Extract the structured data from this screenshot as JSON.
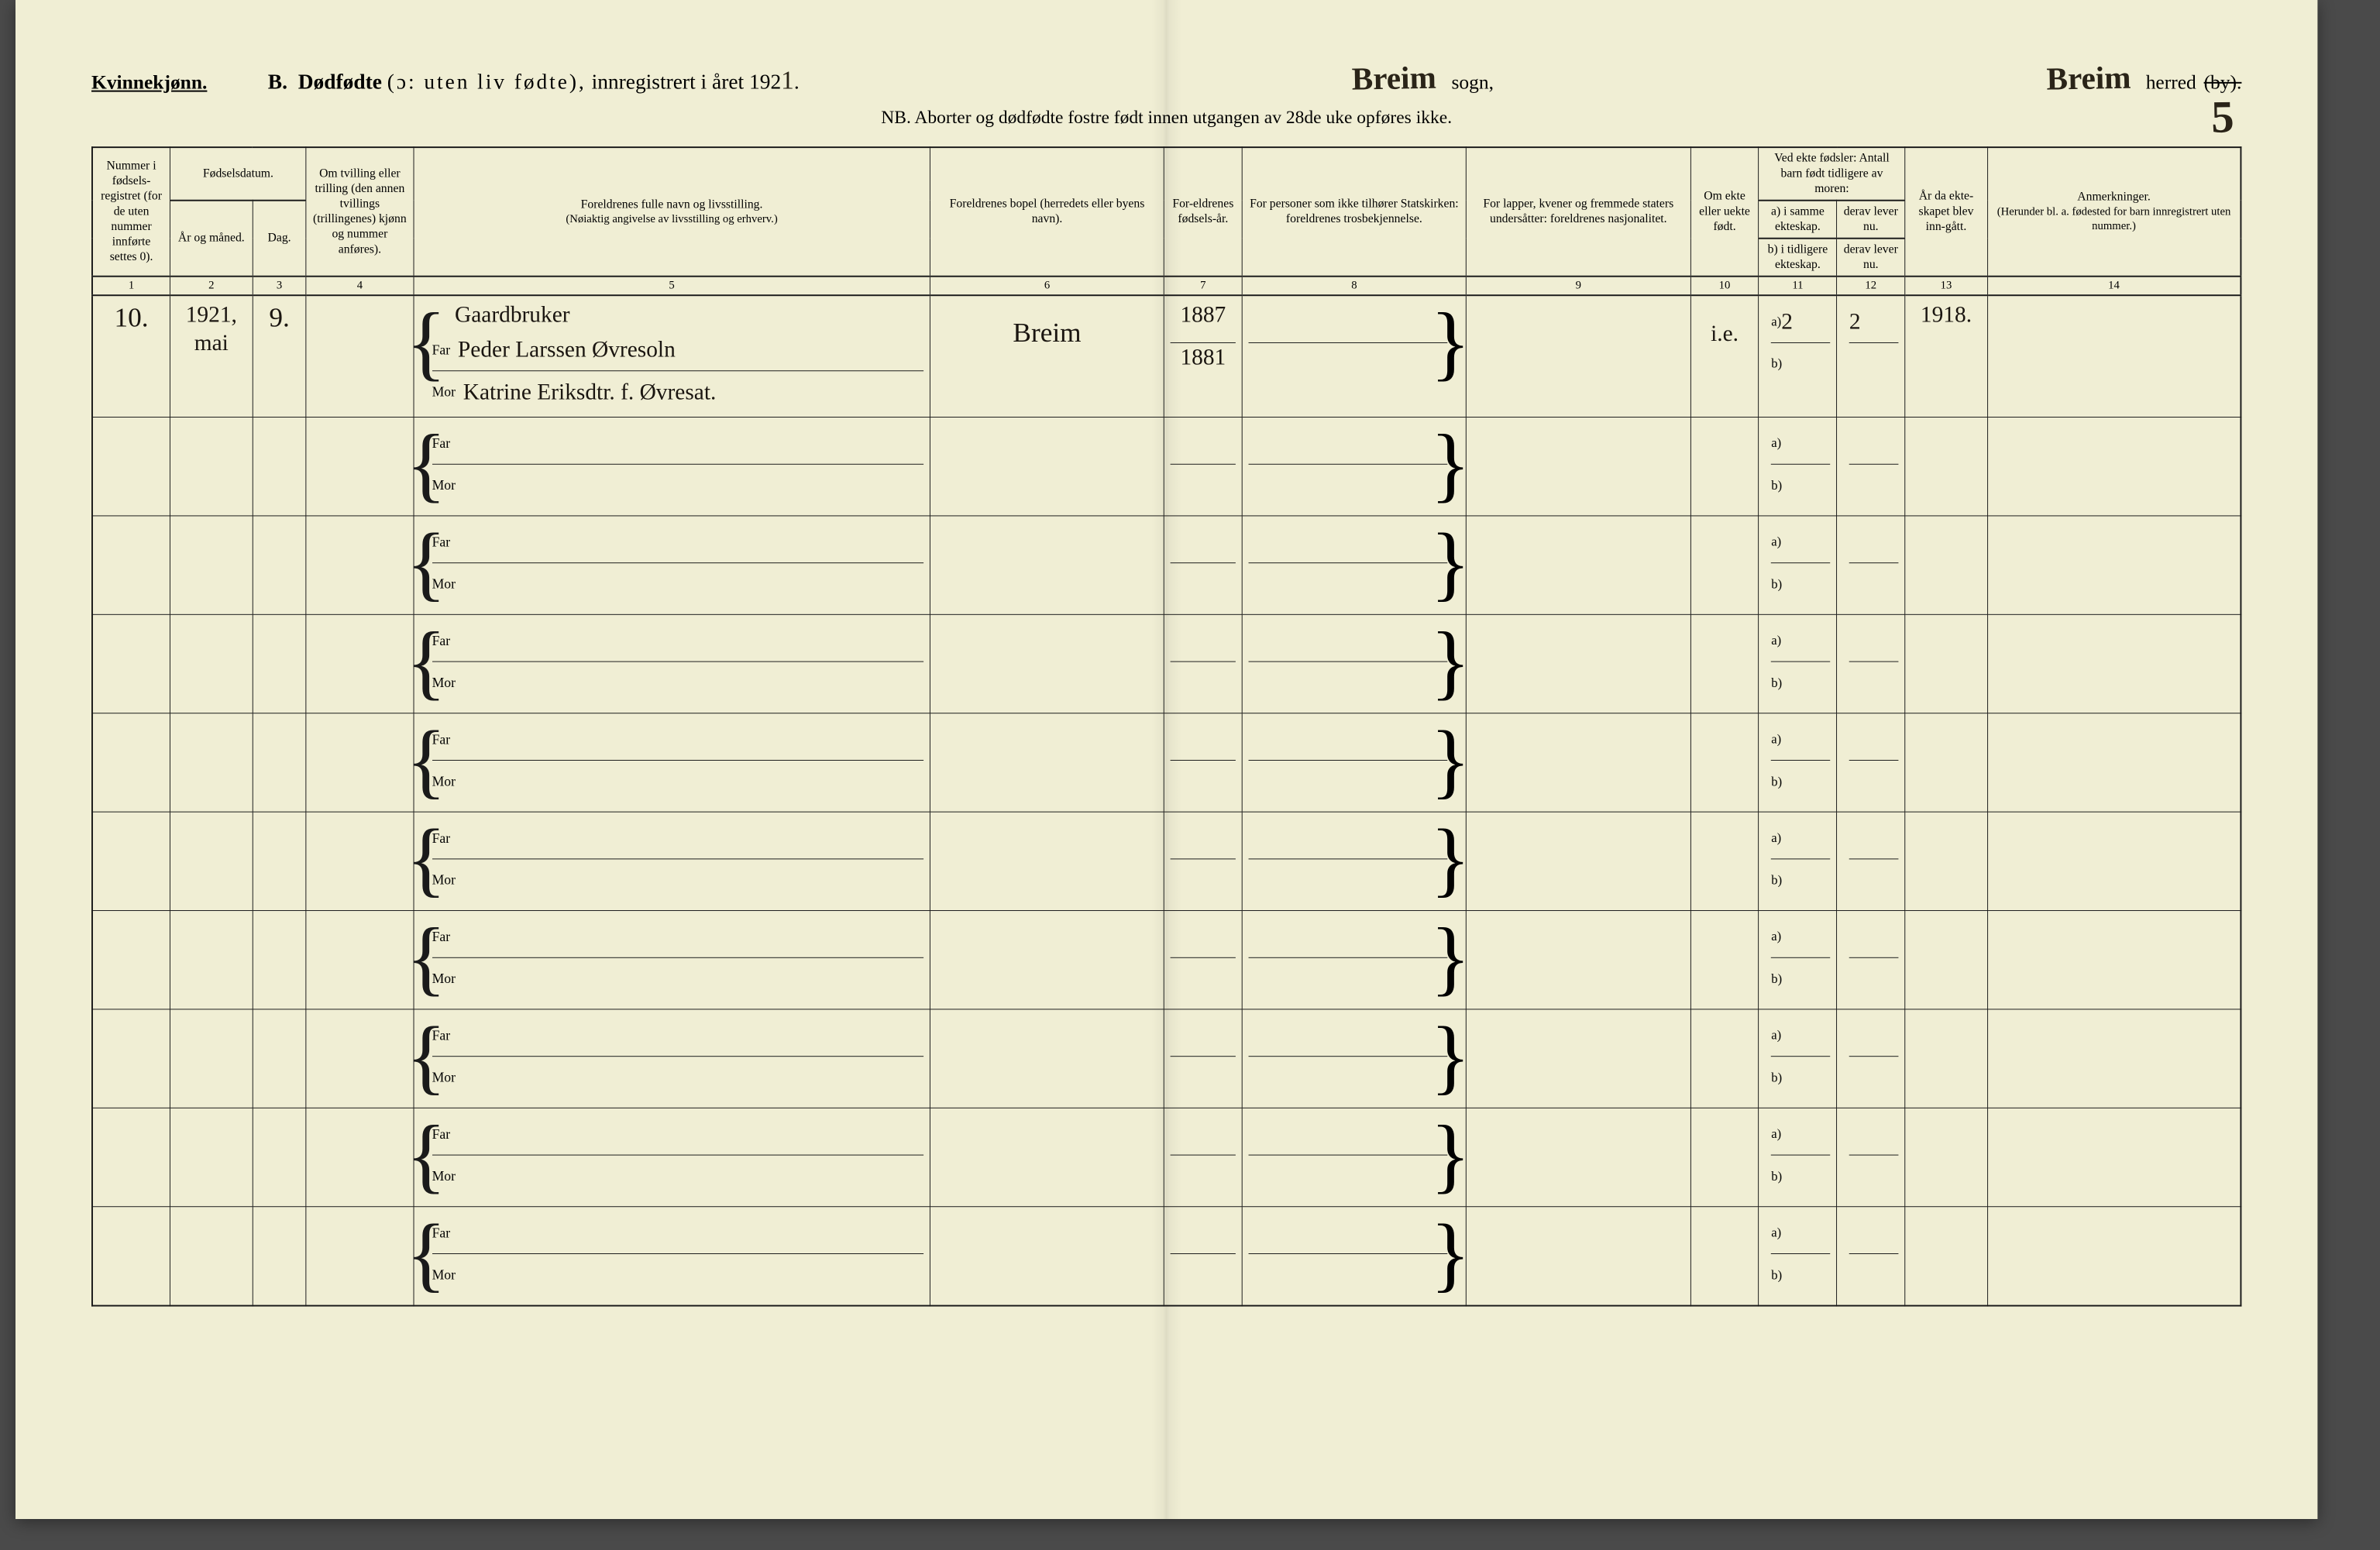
{
  "header": {
    "gender": "Kvinnekjønn.",
    "section_letter": "B.",
    "title_bold": "Dødfødte",
    "title_paren": "(ɔ: uten liv fødte),",
    "title_reg": "innregistrert i året 192",
    "year_hand": "1",
    "sogn_hand": "Breim",
    "sogn_label": "sogn,",
    "herred_hand": "Breim",
    "herred_label": "herred",
    "by_strike": "(by).",
    "nb": "NB. Aborter og dødfødte fostre født innen utgangen av 28de uke opføres ikke.",
    "page_number": "5"
  },
  "columns": {
    "c1": "Nummer i fødsels-registret (for de uten nummer innførte settes 0).",
    "c2": "Fødselsdatum.",
    "c2a": "År og måned.",
    "c2b": "Dag.",
    "c3": "Om tvilling eller trilling (den annen tvillings (trillingenes) kjønn og nummer anføres).",
    "c4_title": "Foreldrenes fulle navn og livsstilling.",
    "c4_sub": "(Nøiaktig angivelse av livsstilling og erhverv.)",
    "c5": "Foreldrenes bopel (herredets eller byens navn).",
    "c6": "For-eldrenes fødsels-år.",
    "c7": "For personer som ikke tilhører Statskirken: foreldrenes trosbekjennelse.",
    "c8": "For lapper, kvener og fremmede staters undersåtter: foreldrenes nasjonalitet.",
    "c9": "Om ekte eller uekte født.",
    "c10_top": "Ved ekte fødsler: Antall barn født tidligere av moren:",
    "c10a": "a) i samme ekteskap.",
    "c10b": "b) i tidligere ekteskap.",
    "c10c": "derav lever nu.",
    "c10d": "derav lever nu.",
    "c11": "År da ekte-skapet blev inn-gått.",
    "c12_title": "Anmerkninger.",
    "c12_sub": "(Herunder bl. a. fødested for barn innregistrert uten nummer.)",
    "far": "Far",
    "mor": "Mor",
    "a": "a)",
    "b": "b)"
  },
  "colnums": [
    "1",
    "2",
    "3",
    "4",
    "5",
    "6",
    "7",
    "8",
    "9",
    "10",
    "11",
    "12",
    "13",
    "14"
  ],
  "rows": [
    {
      "num": "10.",
      "year_month": "1921, mai",
      "day": "9.",
      "twin": "",
      "occupation": "Gaardbruker",
      "far": "Peder Larssen Øvresoln",
      "mor": "Katrine Eriksdtr. f. Øvresat.",
      "bopel": "Breim",
      "far_year": "1887",
      "mor_year": "1881",
      "tros": "",
      "nasj": "",
      "ekte": "i.e.",
      "a_val": "2",
      "a_lever": "2",
      "b_val": "",
      "b_lever": "",
      "ekteskap_aar": "1918.",
      "anm": ""
    },
    {},
    {},
    {},
    {},
    {},
    {},
    {},
    {},
    {}
  ]
}
